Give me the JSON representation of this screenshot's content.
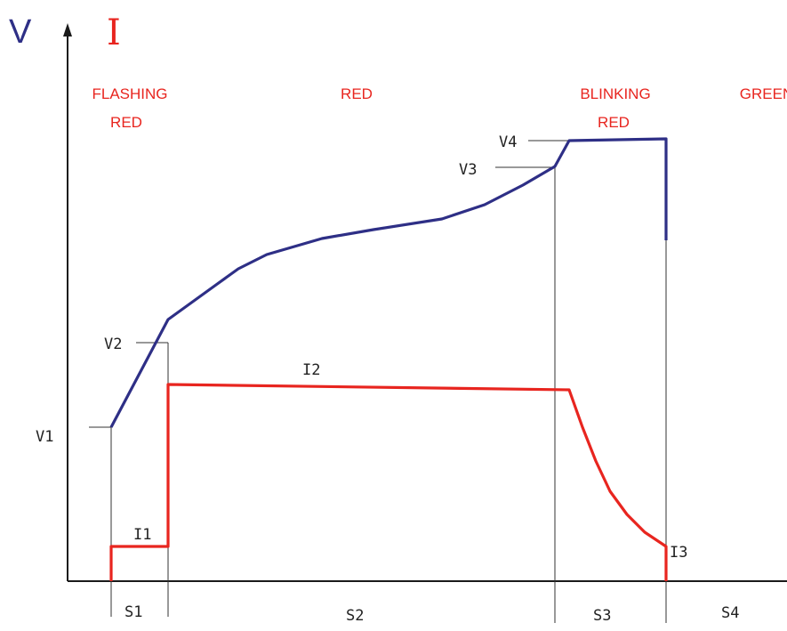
{
  "axes": {
    "v_symbol": "V",
    "i_symbol": "I"
  },
  "phases": [
    {
      "line1": "FLASHING",
      "line2": "RED"
    },
    {
      "line1": "RED",
      "line2": ""
    },
    {
      "line1": "BLINKING",
      "line2": "RED"
    },
    {
      "line1": "GREEN",
      "line2": ""
    }
  ],
  "voltage_labels": {
    "v1": "V1",
    "v2": "V2",
    "v3": "V3",
    "v4": "V4"
  },
  "current_labels": {
    "i1": "I1",
    "i2": "I2",
    "i3": "I3"
  },
  "stage_labels": {
    "s1": "S1",
    "s2": "S2",
    "s3": "S3",
    "s4": "S4"
  },
  "colors": {
    "voltage": "#2e2f86",
    "current": "#e8251f",
    "phase_text": "#e8251f",
    "axis": "#1a1a1a",
    "guide": "#333333"
  }
}
